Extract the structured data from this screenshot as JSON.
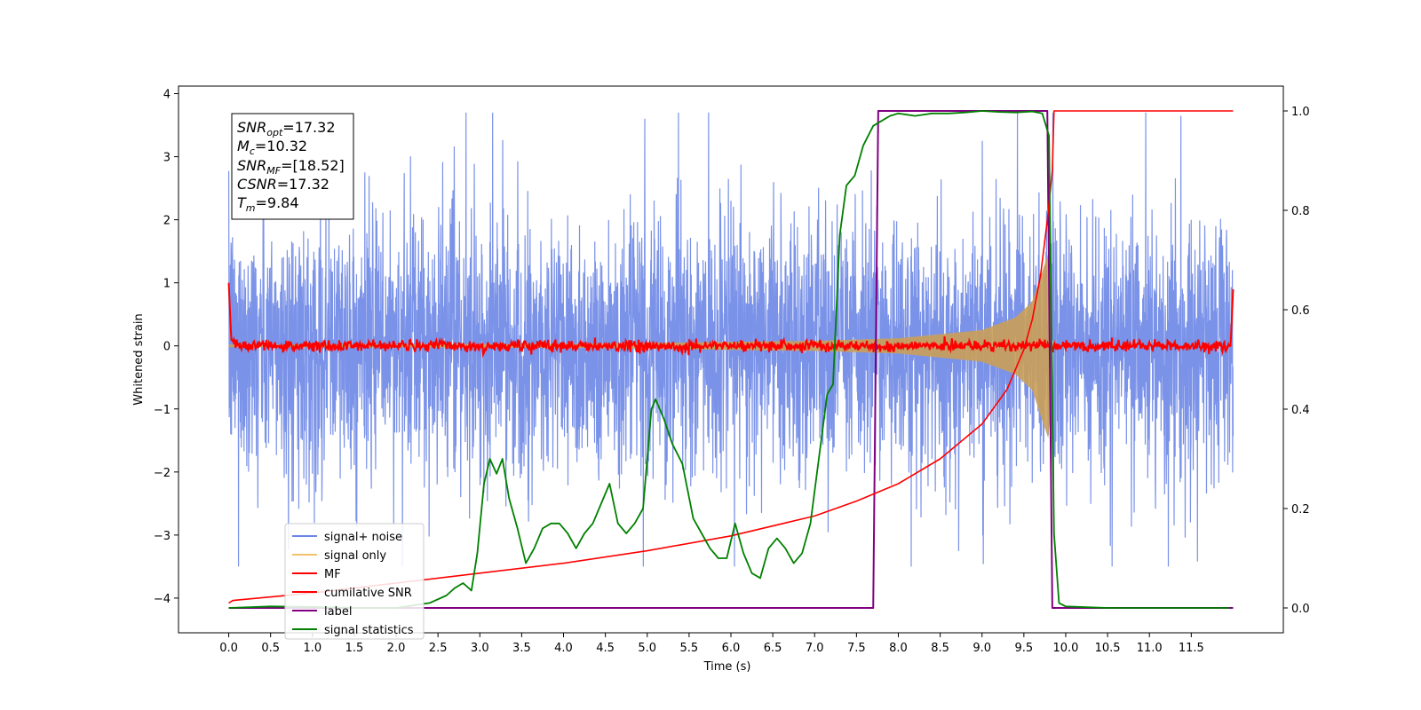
{
  "chart_data": {
    "type": "line",
    "xlabel": "Time (s)",
    "ylabel": "Whitened strain",
    "xlim": [
      -0.6,
      12.6
    ],
    "ylim": [
      -4.55,
      4.12
    ],
    "y2lim": [
      -0.05,
      1.05
    ],
    "xticks": [
      0.0,
      0.5,
      1.0,
      1.5,
      2.0,
      2.5,
      3.0,
      3.5,
      4.0,
      4.5,
      5.0,
      5.5,
      6.0,
      6.5,
      7.0,
      7.5,
      8.0,
      8.5,
      9.0,
      9.5,
      10.0,
      10.5,
      11.0,
      11.5
    ],
    "xtick_labels": [
      "0.0",
      "0.5",
      "1.0",
      "1.5",
      "2.0",
      "2.5",
      "3.0",
      "3.5",
      "4.0",
      "4.5",
      "5.0",
      "5.5",
      "6.0",
      "6.5",
      "7.0",
      "7.5",
      "8.0",
      "8.5",
      "9.0",
      "9.5",
      "10.0",
      "10.5",
      "11.0",
      "11.5"
    ],
    "yticks": [
      4,
      3,
      2,
      1,
      0,
      -1,
      -2,
      -3,
      -4
    ],
    "ytick_labels": [
      "4",
      "3",
      "2",
      "1",
      "0",
      "−1",
      "−2",
      "−3",
      "−4"
    ],
    "y2ticks": [
      1.0,
      0.8,
      0.6,
      0.4,
      0.2,
      0.0
    ],
    "y2tick_labels": [
      "1.0",
      "0.8",
      "0.6",
      "0.4",
      "0.2",
      "0.0"
    ],
    "grid": false,
    "legend_placement": "lower-left",
    "series": [
      {
        "name": "signal+ noise",
        "axis": "left",
        "color": "#6b86e5",
        "amplitude_range": [
          -3.5,
          3.7
        ],
        "x_range": [
          0.0,
          12.0
        ]
      },
      {
        "name": "signal only",
        "axis": "left",
        "color": "#f2c26b",
        "chirp_amplitude": [
          [
            0.0,
            0.02
          ],
          [
            4.0,
            0.03
          ],
          [
            7.0,
            0.08
          ],
          [
            8.0,
            0.12
          ],
          [
            9.0,
            0.25
          ],
          [
            9.4,
            0.45
          ],
          [
            9.6,
            0.7
          ],
          [
            9.75,
            1.3
          ],
          [
            9.8,
            1.5
          ],
          [
            9.84,
            0.0
          ]
        ]
      },
      {
        "name": "MF",
        "axis": "left",
        "color": "#ff0000",
        "points": [
          [
            0.0,
            1.0
          ],
          [
            0.03,
            0.1
          ],
          [
            0.1,
            0.0
          ],
          [
            11.97,
            0.0
          ],
          [
            12.0,
            0.9
          ]
        ]
      },
      {
        "name": "cumilative SNR",
        "axis": "right",
        "color": "#ff0000",
        "points": [
          [
            0.0,
            0.01
          ],
          [
            0.05,
            0.015
          ],
          [
            1.0,
            0.03
          ],
          [
            2.0,
            0.05
          ],
          [
            3.0,
            0.07
          ],
          [
            4.0,
            0.09
          ],
          [
            5.0,
            0.115
          ],
          [
            6.0,
            0.145
          ],
          [
            7.0,
            0.185
          ],
          [
            7.5,
            0.215
          ],
          [
            8.0,
            0.25
          ],
          [
            8.5,
            0.3
          ],
          [
            9.0,
            0.37
          ],
          [
            9.3,
            0.44
          ],
          [
            9.5,
            0.52
          ],
          [
            9.6,
            0.58
          ],
          [
            9.7,
            0.67
          ],
          [
            9.78,
            0.78
          ],
          [
            9.84,
            0.88
          ],
          [
            9.86,
            1.0
          ],
          [
            12.0,
            1.0
          ]
        ]
      },
      {
        "name": "label",
        "axis": "right",
        "color": "#800080",
        "points": [
          [
            0.0,
            0.0
          ],
          [
            7.7,
            0.0
          ],
          [
            7.76,
            1.0
          ],
          [
            9.78,
            1.0
          ],
          [
            9.84,
            0.0
          ],
          [
            12.0,
            0.0
          ]
        ]
      },
      {
        "name": "signal statistics",
        "axis": "right",
        "color": "#008000",
        "points": [
          [
            0.0,
            0.0
          ],
          [
            0.5,
            0.003
          ],
          [
            1.0,
            0.002
          ],
          [
            1.5,
            0.0
          ],
          [
            2.0,
            0.0
          ],
          [
            2.2,
            0.005
          ],
          [
            2.4,
            0.01
          ],
          [
            2.6,
            0.025
          ],
          [
            2.7,
            0.04
          ],
          [
            2.8,
            0.05
          ],
          [
            2.9,
            0.035
          ],
          [
            2.97,
            0.11
          ],
          [
            3.05,
            0.25
          ],
          [
            3.12,
            0.3
          ],
          [
            3.2,
            0.27
          ],
          [
            3.27,
            0.3
          ],
          [
            3.35,
            0.22
          ],
          [
            3.45,
            0.16
          ],
          [
            3.55,
            0.09
          ],
          [
            3.65,
            0.12
          ],
          [
            3.75,
            0.16
          ],
          [
            3.85,
            0.17
          ],
          [
            3.95,
            0.17
          ],
          [
            4.05,
            0.15
          ],
          [
            4.15,
            0.12
          ],
          [
            4.25,
            0.15
          ],
          [
            4.35,
            0.17
          ],
          [
            4.45,
            0.21
          ],
          [
            4.55,
            0.25
          ],
          [
            4.65,
            0.17
          ],
          [
            4.75,
            0.15
          ],
          [
            4.85,
            0.17
          ],
          [
            4.95,
            0.2
          ],
          [
            5.05,
            0.4
          ],
          [
            5.1,
            0.42
          ],
          [
            5.2,
            0.38
          ],
          [
            5.3,
            0.33
          ],
          [
            5.42,
            0.29
          ],
          [
            5.55,
            0.18
          ],
          [
            5.65,
            0.15
          ],
          [
            5.75,
            0.12
          ],
          [
            5.85,
            0.1
          ],
          [
            5.95,
            0.1
          ],
          [
            6.05,
            0.17
          ],
          [
            6.15,
            0.11
          ],
          [
            6.25,
            0.07
          ],
          [
            6.35,
            0.06
          ],
          [
            6.45,
            0.12
          ],
          [
            6.55,
            0.14
          ],
          [
            6.65,
            0.12
          ],
          [
            6.75,
            0.09
          ],
          [
            6.85,
            0.11
          ],
          [
            6.95,
            0.17
          ],
          [
            7.05,
            0.3
          ],
          [
            7.15,
            0.43
          ],
          [
            7.22,
            0.45
          ],
          [
            7.3,
            0.75
          ],
          [
            7.38,
            0.85
          ],
          [
            7.48,
            0.87
          ],
          [
            7.58,
            0.93
          ],
          [
            7.7,
            0.97
          ],
          [
            7.8,
            0.98
          ],
          [
            7.9,
            0.99
          ],
          [
            8.0,
            0.995
          ],
          [
            8.2,
            0.99
          ],
          [
            8.4,
            0.995
          ],
          [
            8.6,
            0.995
          ],
          [
            8.8,
            0.997
          ],
          [
            9.0,
            1.0
          ],
          [
            9.2,
            0.998
          ],
          [
            9.4,
            0.997
          ],
          [
            9.6,
            0.999
          ],
          [
            9.72,
            0.995
          ],
          [
            9.8,
            0.95
          ],
          [
            9.86,
            0.15
          ],
          [
            9.92,
            0.01
          ],
          [
            10.0,
            0.003
          ],
          [
            10.5,
            0.0
          ],
          [
            11.5,
            0.0
          ],
          [
            11.95,
            0.0
          ]
        ]
      }
    ],
    "annotation": {
      "snr_opt": "=17.32",
      "mc": "=10.32",
      "snr_mf": "=[18.52]",
      "csnr": "=17.32",
      "tm": "=9.84"
    },
    "legend": [
      "signal+ noise",
      "signal only",
      "MF",
      "cumilative SNR",
      "label",
      "signal statistics"
    ]
  }
}
